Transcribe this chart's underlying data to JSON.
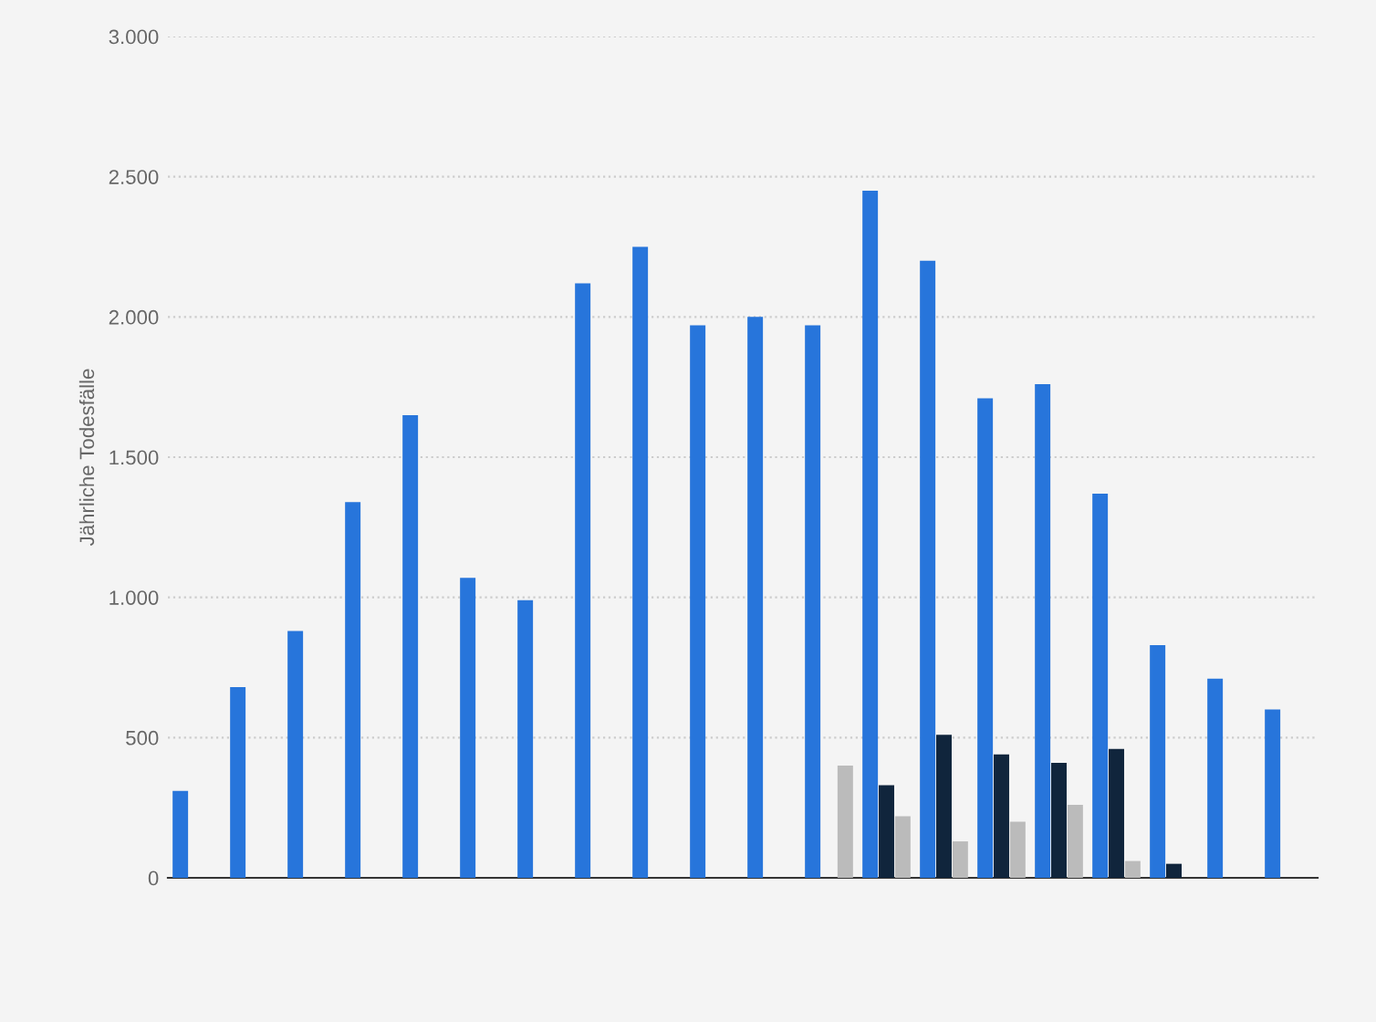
{
  "chart_data": {
    "type": "bar",
    "ylabel": "Jährliche Todesfälle",
    "categories": [
      null,
      null,
      null,
      null,
      null,
      null,
      null,
      null,
      null,
      null,
      null,
      null,
      null,
      null,
      null,
      null,
      null,
      null,
      null,
      null
    ],
    "series": [
      {
        "color": "#2775db",
        "values": [
          310,
          680,
          880,
          1340,
          1650,
          1070,
          990,
          2120,
          2250,
          1970,
          2000,
          1970,
          2450,
          2200,
          1710,
          1760,
          1370,
          830,
          710,
          600
        ]
      },
      {
        "color": "#10253c",
        "values": [
          null,
          null,
          null,
          null,
          null,
          null,
          null,
          null,
          null,
          null,
          null,
          null,
          330,
          510,
          440,
          410,
          460,
          50,
          null,
          null
        ]
      },
      {
        "color": "#bbbbbb",
        "values": [
          null,
          null,
          null,
          null,
          null,
          null,
          null,
          null,
          null,
          null,
          null,
          400,
          220,
          130,
          200,
          260,
          60,
          null,
          null,
          null
        ]
      }
    ],
    "ylim": [
      0,
      3000
    ],
    "yticks": [
      {
        "value": 0,
        "label": "0"
      },
      {
        "value": 500,
        "label": "500"
      },
      {
        "value": 1000,
        "label": "1.000"
      },
      {
        "value": 1500,
        "label": "1.500"
      },
      {
        "value": 2000,
        "label": "2.000"
      },
      {
        "value": 2500,
        "label": "2.500"
      },
      {
        "value": 3000,
        "label": "3.000"
      }
    ],
    "grid": "y"
  }
}
